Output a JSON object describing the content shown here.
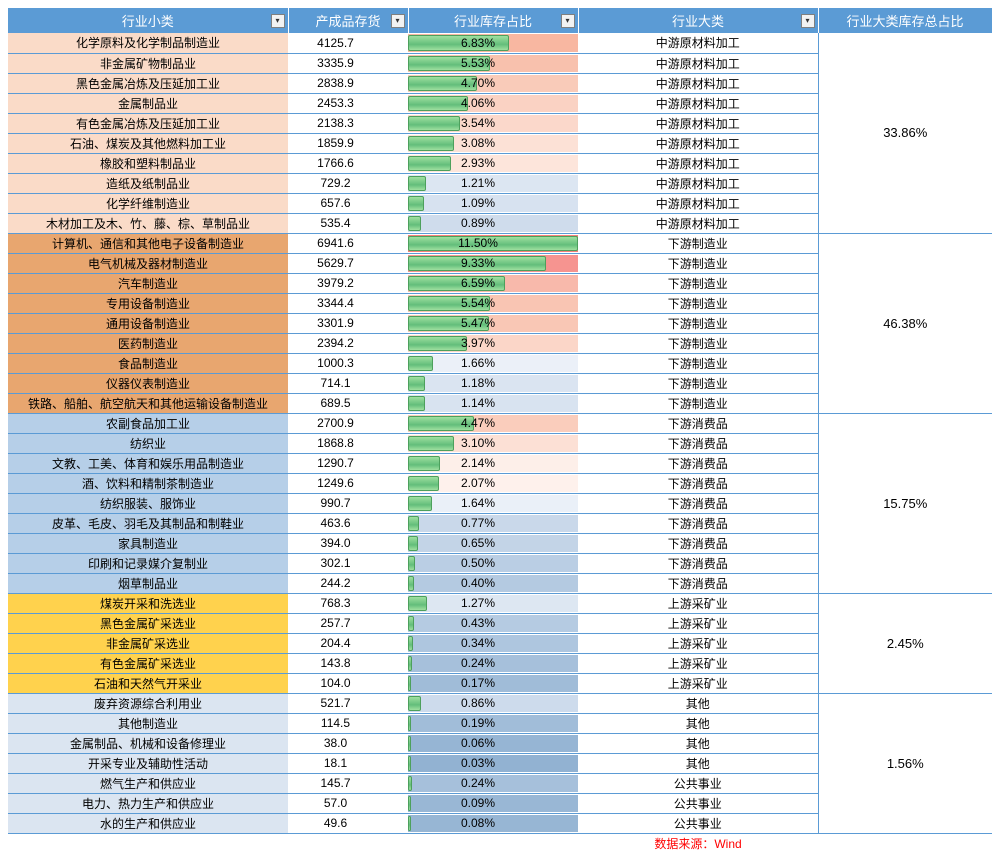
{
  "headers": {
    "col1": "行业小类",
    "col2": "产成品存货",
    "col3": "行业库存占比",
    "col4": "行业大类",
    "col5": "行业大类库存总占比"
  },
  "dropdown_glyph": "▾",
  "bar_max_pct": 11.5,
  "groups": [
    {
      "total_label": "33.86%",
      "cat_bg": "#fadbc8",
      "rows": [
        {
          "name": "化学原料及化学制品制造业",
          "inv": "4125.7",
          "pct": 6.83,
          "pct_label": "6.83%",
          "bg": "#f8b7a1",
          "big": "中游原材料加工"
        },
        {
          "name": "非金属矿物制品业",
          "inv": "3335.9",
          "pct": 5.53,
          "pct_label": "5.53%",
          "bg": "#f8c1ad",
          "big": "中游原材料加工"
        },
        {
          "name": "黑色金属冶炼及压延加工业",
          "inv": "2838.9",
          "pct": 4.7,
          "pct_label": "4.70%",
          "bg": "#f9cbb9",
          "big": "中游原材料加工"
        },
        {
          "name": "金属制品业",
          "inv": "2453.3",
          "pct": 4.06,
          "pct_label": "4.06%",
          "bg": "#fad2c3",
          "big": "中游原材料加工"
        },
        {
          "name": "有色金属冶炼及压延加工业",
          "inv": "2138.3",
          "pct": 3.54,
          "pct_label": "3.54%",
          "bg": "#fbd8cb",
          "big": "中游原材料加工"
        },
        {
          "name": "石油、煤炭及其他燃料加工业",
          "inv": "1859.9",
          "pct": 3.08,
          "pct_label": "3.08%",
          "bg": "#fce1d6",
          "big": "中游原材料加工"
        },
        {
          "name": "橡胶和塑料制品业",
          "inv": "1766.6",
          "pct": 2.93,
          "pct_label": "2.93%",
          "bg": "#fde5db",
          "big": "中游原材料加工"
        },
        {
          "name": "造纸及纸制品业",
          "inv": "729.2",
          "pct": 1.21,
          "pct_label": "1.21%",
          "bg": "#dce6f2",
          "big": "中游原材料加工"
        },
        {
          "name": "化学纤维制造业",
          "inv": "657.6",
          "pct": 1.09,
          "pct_label": "1.09%",
          "bg": "#d7e2f0",
          "big": "中游原材料加工"
        },
        {
          "name": "木材加工及木、竹、藤、棕、草制品业",
          "inv": "535.4",
          "pct": 0.89,
          "pct_label": "0.89%",
          "bg": "#cfdcec",
          "big": "中游原材料加工"
        }
      ]
    },
    {
      "total_label": "46.38%",
      "cat_bg": "#e8a66f",
      "rows": [
        {
          "name": "计算机、通信和其他电子设备制造业",
          "inv": "6941.6",
          "pct": 11.5,
          "pct_label": "11.50%",
          "bg": "#f67f7b",
          "big": "下游制造业"
        },
        {
          "name": "电气机械及器材制造业",
          "inv": "5629.7",
          "pct": 9.33,
          "pct_label": "9.33%",
          "bg": "#f69490",
          "big": "下游制造业"
        },
        {
          "name": "汽车制造业",
          "inv": "3979.2",
          "pct": 6.59,
          "pct_label": "6.59%",
          "bg": "#f8b9ab",
          "big": "下游制造业"
        },
        {
          "name": "专用设备制造业",
          "inv": "3344.4",
          "pct": 5.54,
          "pct_label": "5.54%",
          "bg": "#f9c5b3",
          "big": "下游制造业"
        },
        {
          "name": "通用设备制造业",
          "inv": "3301.9",
          "pct": 5.47,
          "pct_label": "5.47%",
          "bg": "#f9c7b5",
          "big": "下游制造业"
        },
        {
          "name": "医药制造业",
          "inv": "2394.2",
          "pct": 3.97,
          "pct_label": "3.97%",
          "bg": "#fbd6c8",
          "big": "下游制造业"
        },
        {
          "name": "食品制造业",
          "inv": "1000.3",
          "pct": 1.66,
          "pct_label": "1.66%",
          "bg": "#ebf0f8",
          "big": "下游制造业"
        },
        {
          "name": "仪器仪表制造业",
          "inv": "714.1",
          "pct": 1.18,
          "pct_label": "1.18%",
          "bg": "#dae4f1",
          "big": "下游制造业"
        },
        {
          "name": "铁路、船舶、航空航天和其他运输设备制造业",
          "inv": "689.5",
          "pct": 1.14,
          "pct_label": "1.14%",
          "bg": "#d8e3f0",
          "big": "下游制造业"
        }
      ]
    },
    {
      "total_label": "15.75%",
      "cat_bg": "#b6cfe8",
      "rows": [
        {
          "name": "农副食品加工业",
          "inv": "2700.9",
          "pct": 4.47,
          "pct_label": "4.47%",
          "bg": "#facdbc",
          "big": "下游消费品"
        },
        {
          "name": "纺织业",
          "inv": "1868.8",
          "pct": 3.1,
          "pct_label": "3.10%",
          "bg": "#fce0d5",
          "big": "下游消费品"
        },
        {
          "name": "文教、工美、体育和娱乐用品制造业",
          "inv": "1290.7",
          "pct": 2.14,
          "pct_label": "2.14%",
          "bg": "#fdefe9",
          "big": "下游消费品"
        },
        {
          "name": "酒、饮料和精制茶制造业",
          "inv": "1249.6",
          "pct": 2.07,
          "pct_label": "2.07%",
          "bg": "#fef1ec",
          "big": "下游消费品"
        },
        {
          "name": "纺织服装、服饰业",
          "inv": "990.7",
          "pct": 1.64,
          "pct_label": "1.64%",
          "bg": "#eaf0f8",
          "big": "下游消费品"
        },
        {
          "name": "皮革、毛皮、羽毛及其制品和制鞋业",
          "inv": "463.6",
          "pct": 0.77,
          "pct_label": "0.77%",
          "bg": "#c9d8ea",
          "big": "下游消费品"
        },
        {
          "name": "家具制造业",
          "inv": "394.0",
          "pct": 0.65,
          "pct_label": "0.65%",
          "bg": "#c3d4e7",
          "big": "下游消费品"
        },
        {
          "name": "印刷和记录媒介复制业",
          "inv": "302.1",
          "pct": 0.5,
          "pct_label": "0.50%",
          "bg": "#bacee4",
          "big": "下游消费品"
        },
        {
          "name": "烟草制品业",
          "inv": "244.2",
          "pct": 0.4,
          "pct_label": "0.40%",
          "bg": "#b4cae1",
          "big": "下游消费品"
        }
      ]
    },
    {
      "total_label": "2.45%",
      "cat_bg": "#ffd24d",
      "rows": [
        {
          "name": "煤炭开采和洗选业",
          "inv": "768.3",
          "pct": 1.27,
          "pct_label": "1.27%",
          "bg": "#dde7f2",
          "big": "上游采矿业"
        },
        {
          "name": "黑色金属矿采选业",
          "inv": "257.7",
          "pct": 0.43,
          "pct_label": "0.43%",
          "bg": "#b5cbe2",
          "big": "上游采矿业"
        },
        {
          "name": "非金属矿采选业",
          "inv": "204.4",
          "pct": 0.34,
          "pct_label": "0.34%",
          "bg": "#aec6df",
          "big": "上游采矿业"
        },
        {
          "name": "有色金属矿采选业",
          "inv": "143.8",
          "pct": 0.24,
          "pct_label": "0.24%",
          "bg": "#a6c0db",
          "big": "上游采矿业"
        },
        {
          "name": "石油和天然气开采业",
          "inv": "104.0",
          "pct": 0.17,
          "pct_label": "0.17%",
          "bg": "#a0bcd8",
          "big": "上游采矿业"
        }
      ]
    },
    {
      "total_label": "1.56%",
      "cat_bg": "#dbe5f1",
      "rows": [
        {
          "name": "废弃资源综合利用业",
          "inv": "521.7",
          "pct": 0.86,
          "pct_label": "0.86%",
          "bg": "#cddbec",
          "big": "其他"
        },
        {
          "name": "其他制造业",
          "inv": "114.5",
          "pct": 0.19,
          "pct_label": "0.19%",
          "bg": "#a1bdd9",
          "big": "其他"
        },
        {
          "name": "金属制品、机械和设备修理业",
          "inv": "38.0",
          "pct": 0.06,
          "pct_label": "0.06%",
          "bg": "#96b5d4",
          "big": "其他"
        },
        {
          "name": "开采专业及辅助性活动",
          "inv": "18.1",
          "pct": 0.03,
          "pct_label": "0.03%",
          "bg": "#92b2d2",
          "big": "其他"
        },
        {
          "name": "燃气生产和供应业",
          "inv": "145.7",
          "pct": 0.24,
          "pct_label": "0.24%",
          "bg": "#a6c0db",
          "big": "公共事业"
        },
        {
          "name": "电力、热力生产和供应业",
          "inv": "57.0",
          "pct": 0.09,
          "pct_label": "0.09%",
          "bg": "#99b7d5",
          "big": "公共事业"
        },
        {
          "name": "水的生产和供应业",
          "inv": "49.6",
          "pct": 0.08,
          "pct_label": "0.08%",
          "bg": "#97b6d4",
          "big": "公共事业"
        }
      ]
    }
  ],
  "footer": {
    "source_label": "数据来源：",
    "source_value": "Wind"
  }
}
